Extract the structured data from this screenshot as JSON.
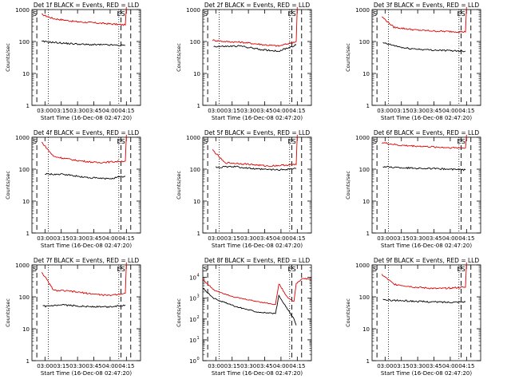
{
  "colors": {
    "events": "#000000",
    "lld": "#e00000",
    "axes": "#000000",
    "background": "#ffffff"
  },
  "common": {
    "xlabel": "Start Time (16-Dec-08 02:47:20)",
    "ylabel": "Counts/sec",
    "xtick_labels": [
      "03:00",
      "03:15",
      "03:30",
      "03:45",
      "04:00",
      "04:15"
    ],
    "marker_S": "S",
    "marker_ES": "ES"
  },
  "chart_data": [
    {
      "type": "line",
      "title": "Det 1f BLACK = Events, RED = LLD",
      "ylog": [
        0,
        3
      ],
      "ytick_labels": [
        "1",
        "10",
        "100",
        "1000"
      ],
      "y_exponent_style": false,
      "lld": [
        [
          0.09,
          700
        ],
        [
          0.2,
          520
        ],
        [
          0.4,
          420
        ],
        [
          0.6,
          380
        ],
        [
          0.86,
          330
        ]
      ],
      "events": [
        [
          0.09,
          100
        ],
        [
          0.3,
          88
        ],
        [
          0.5,
          80
        ],
        [
          0.7,
          78
        ],
        [
          0.86,
          75
        ]
      ],
      "lld_end": 1200,
      "events_end": null
    },
    {
      "type": "line",
      "title": "Det 2f BLACK = Events, RED = LLD",
      "ylog": [
        0,
        3
      ],
      "ytick_labels": [
        "1",
        "10",
        "100",
        "1000"
      ],
      "y_exponent_style": false,
      "lld": [
        [
          0.09,
          110
        ],
        [
          0.2,
          100
        ],
        [
          0.35,
          95
        ],
        [
          0.55,
          80
        ],
        [
          0.7,
          72
        ],
        [
          0.86,
          100
        ]
      ],
      "events": [
        [
          0.1,
          70
        ],
        [
          0.2,
          70
        ],
        [
          0.35,
          72
        ],
        [
          0.55,
          55
        ],
        [
          0.7,
          50
        ],
        [
          0.86,
          78
        ]
      ],
      "lld_end": 1200,
      "events_end": null
    },
    {
      "type": "line",
      "title": "Det 3f BLACK = Events, RED = LLD",
      "ylog": [
        0,
        3
      ],
      "ytick_labels": [
        "1",
        "10",
        "100",
        "1000"
      ],
      "y_exponent_style": false,
      "lld": [
        [
          0.09,
          600
        ],
        [
          0.2,
          280
        ],
        [
          0.4,
          230
        ],
        [
          0.6,
          210
        ],
        [
          0.86,
          200
        ]
      ],
      "events": [
        [
          0.1,
          90
        ],
        [
          0.3,
          62
        ],
        [
          0.5,
          55
        ],
        [
          0.7,
          52
        ],
        [
          0.86,
          50
        ]
      ],
      "lld_end": 1200,
      "events_end": null
    },
    {
      "type": "line",
      "title": "Det 4f BLACK = Events, RED = LLD",
      "ylog": [
        0,
        3
      ],
      "ytick_labels": [
        "1",
        "10",
        "100",
        "1000"
      ],
      "y_exponent_style": false,
      "lld": [
        [
          0.09,
          700
        ],
        [
          0.2,
          250
        ],
        [
          0.4,
          190
        ],
        [
          0.6,
          160
        ],
        [
          0.86,
          180
        ]
      ],
      "events": [
        [
          0.12,
          70
        ],
        [
          0.3,
          68
        ],
        [
          0.5,
          55
        ],
        [
          0.7,
          50
        ],
        [
          0.86,
          60
        ]
      ],
      "lld_end": 1200,
      "events_end": null
    },
    {
      "type": "line",
      "title": "Det 5f BLACK = Events, RED = LLD",
      "ylog": [
        0,
        3
      ],
      "ytick_labels": [
        "1",
        "10",
        "100",
        "1000"
      ],
      "y_exponent_style": false,
      "lld": [
        [
          0.09,
          400
        ],
        [
          0.2,
          160
        ],
        [
          0.4,
          145
        ],
        [
          0.6,
          125
        ],
        [
          0.86,
          140
        ]
      ],
      "events": [
        [
          0.12,
          115
        ],
        [
          0.3,
          120
        ],
        [
          0.5,
          100
        ],
        [
          0.7,
          95
        ],
        [
          0.86,
          105
        ]
      ],
      "lld_end": 1200,
      "events_end": null
    },
    {
      "type": "line",
      "title": "Det 6f BLACK = Events, RED = LLD",
      "ylog": [
        0,
        3
      ],
      "ytick_labels": [
        "1",
        "10",
        "100",
        "1000"
      ],
      "y_exponent_style": false,
      "lld": [
        [
          0.09,
          680
        ],
        [
          0.25,
          560
        ],
        [
          0.45,
          520
        ],
        [
          0.65,
          480
        ],
        [
          0.86,
          460
        ]
      ],
      "events": [
        [
          0.1,
          120
        ],
        [
          0.3,
          110
        ],
        [
          0.5,
          105
        ],
        [
          0.7,
          100
        ],
        [
          0.86,
          95
        ]
      ],
      "lld_end": 1200,
      "events_end": null
    },
    {
      "type": "line",
      "title": "Det 7f BLACK = Events, RED = LLD",
      "ylog": [
        0,
        3
      ],
      "ytick_labels": [
        "1",
        "10",
        "100",
        "1000"
      ],
      "y_exponent_style": false,
      "lld": [
        [
          0.09,
          600
        ],
        [
          0.2,
          160
        ],
        [
          0.35,
          150
        ],
        [
          0.5,
          130
        ],
        [
          0.7,
          110
        ],
        [
          0.86,
          130
        ]
      ],
      "events": [
        [
          0.1,
          50
        ],
        [
          0.3,
          55
        ],
        [
          0.5,
          50
        ],
        [
          0.7,
          48
        ],
        [
          0.86,
          55
        ]
      ],
      "lld_end": 1200,
      "events_end": null
    },
    {
      "type": "line",
      "title": "Det 8f BLACK = Events, RED = LLD",
      "ylog": [
        0,
        4.6
      ],
      "ytick_labels": [
        "0",
        "1",
        "2",
        "3",
        "4"
      ],
      "y_exponent_style": true,
      "lld": [
        [
          0.0,
          8000
        ],
        [
          0.1,
          2500
        ],
        [
          0.3,
          1100
        ],
        [
          0.5,
          700
        ],
        [
          0.67,
          500
        ],
        [
          0.7,
          5000
        ],
        [
          0.78,
          1100
        ],
        [
          0.84,
          700
        ],
        [
          0.86,
          5000
        ],
        [
          0.92,
          9000
        ],
        [
          1.0,
          8000
        ]
      ],
      "events": [
        [
          0.0,
          3000
        ],
        [
          0.1,
          1000
        ],
        [
          0.3,
          400
        ],
        [
          0.5,
          220
        ],
        [
          0.67,
          180
        ],
        [
          0.7,
          1300
        ],
        [
          0.78,
          300
        ],
        [
          0.84,
          100
        ],
        [
          0.86,
          50
        ]
      ],
      "lld_end": null,
      "events_end": null
    },
    {
      "type": "line",
      "title": "Det 9f BLACK = Events, RED = LLD",
      "ylog": [
        0,
        3
      ],
      "ytick_labels": [
        "1",
        "10",
        "100",
        "1000"
      ],
      "y_exponent_style": false,
      "lld": [
        [
          0.09,
          500
        ],
        [
          0.2,
          250
        ],
        [
          0.4,
          200
        ],
        [
          0.6,
          180
        ],
        [
          0.86,
          200
        ]
      ],
      "events": [
        [
          0.1,
          80
        ],
        [
          0.3,
          75
        ],
        [
          0.5,
          70
        ],
        [
          0.7,
          68
        ],
        [
          0.86,
          70
        ]
      ],
      "lld_end": 1200,
      "events_end": null
    }
  ]
}
